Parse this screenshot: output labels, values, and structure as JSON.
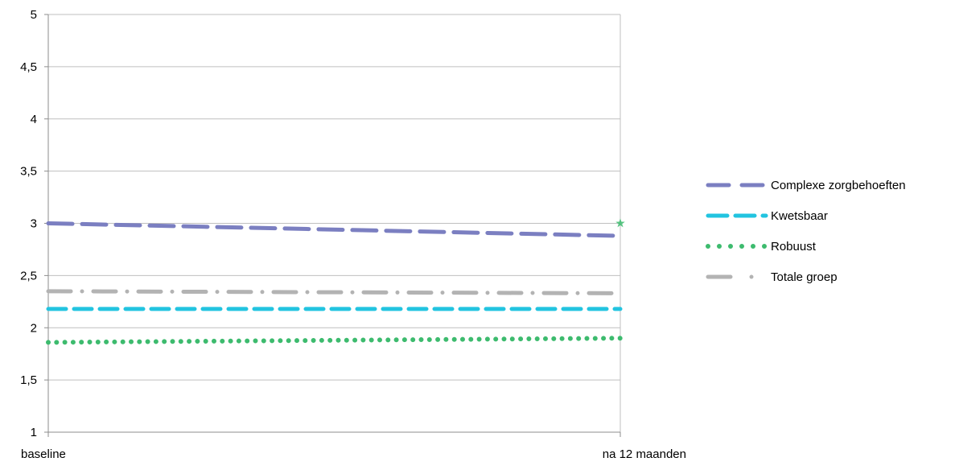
{
  "chart_data": {
    "type": "line",
    "categories": [
      "baseline",
      "na 12 maanden"
    ],
    "ylim": [
      1,
      5
    ],
    "yticks": [
      1,
      1.5,
      2,
      2.5,
      3,
      3.5,
      4,
      4.5,
      5
    ],
    "ytick_labels": [
      "1",
      "1,5",
      "2",
      "2,5",
      "3",
      "3,5",
      "4",
      "4,5",
      "5"
    ],
    "grid": true,
    "legend_position": "right",
    "series": [
      {
        "name": "Complexe zorgbehoeften",
        "values": [
          3.0,
          2.88
        ],
        "color": "#7b7fc1",
        "style": "long-dash"
      },
      {
        "name": "Kwetsbaar",
        "values": [
          2.18,
          2.18
        ],
        "color": "#22c4e0",
        "style": "dash"
      },
      {
        "name": "Robuust",
        "values": [
          1.86,
          1.9
        ],
        "color": "#3dbb6e",
        "style": "dot"
      },
      {
        "name": "Totale groep",
        "values": [
          2.35,
          2.33
        ],
        "color": "#b3b3b3",
        "style": "dash-dot"
      }
    ],
    "annotations": [
      {
        "x": "na 12 maanden",
        "y": 3.0,
        "marker": "star",
        "color": "#3dbb6e"
      }
    ]
  }
}
